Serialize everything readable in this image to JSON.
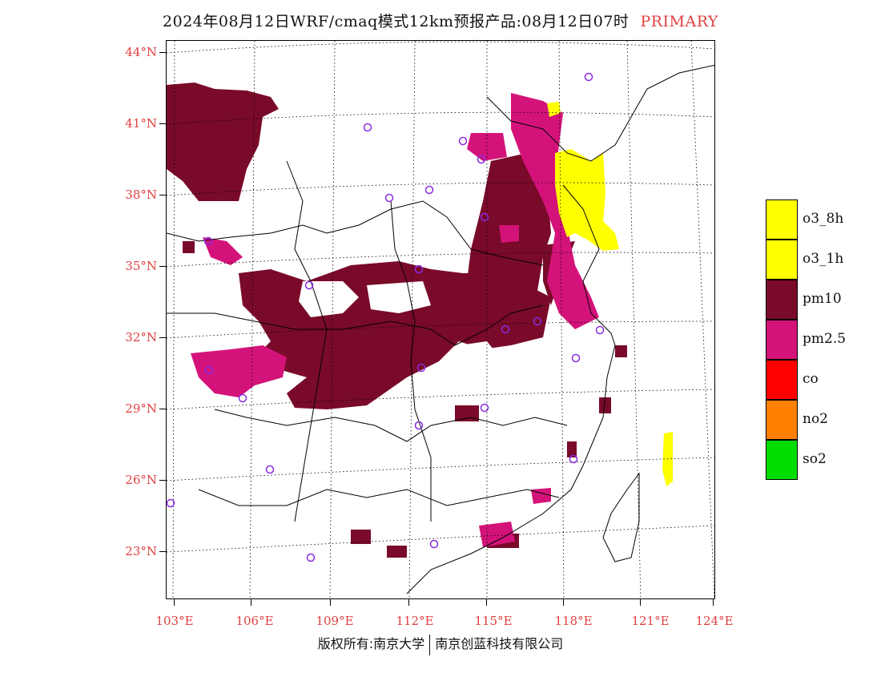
{
  "title": {
    "main": "2024年08月12日WRF/cmaq模式12km预报产品:08月12日07时",
    "tag": "PRIMARY"
  },
  "latitudes": [
    "44°N",
    "41°N",
    "38°N",
    "35°N",
    "32°N",
    "29°N",
    "26°N",
    "23°N"
  ],
  "longitudes": [
    "103°E",
    "106°E",
    "109°E",
    "112°E",
    "115°E",
    "118°E",
    "121°E",
    "124°E"
  ],
  "legend": [
    {
      "label": "o3_8h",
      "color": "#ffff00"
    },
    {
      "label": "o3_1h",
      "color": "#ffff00"
    },
    {
      "label": "pm10",
      "color": "#7a0a2a"
    },
    {
      "label": "pm2.5",
      "color": "#d4137a"
    },
    {
      "label": "co",
      "color": "#ff0000"
    },
    {
      "label": "no2",
      "color": "#ff7f00"
    },
    {
      "label": "so2",
      "color": "#00dd00"
    }
  ],
  "footer": {
    "left": "版权所有:南京大学",
    "right": "南京创蓝科技有限公司"
  }
}
